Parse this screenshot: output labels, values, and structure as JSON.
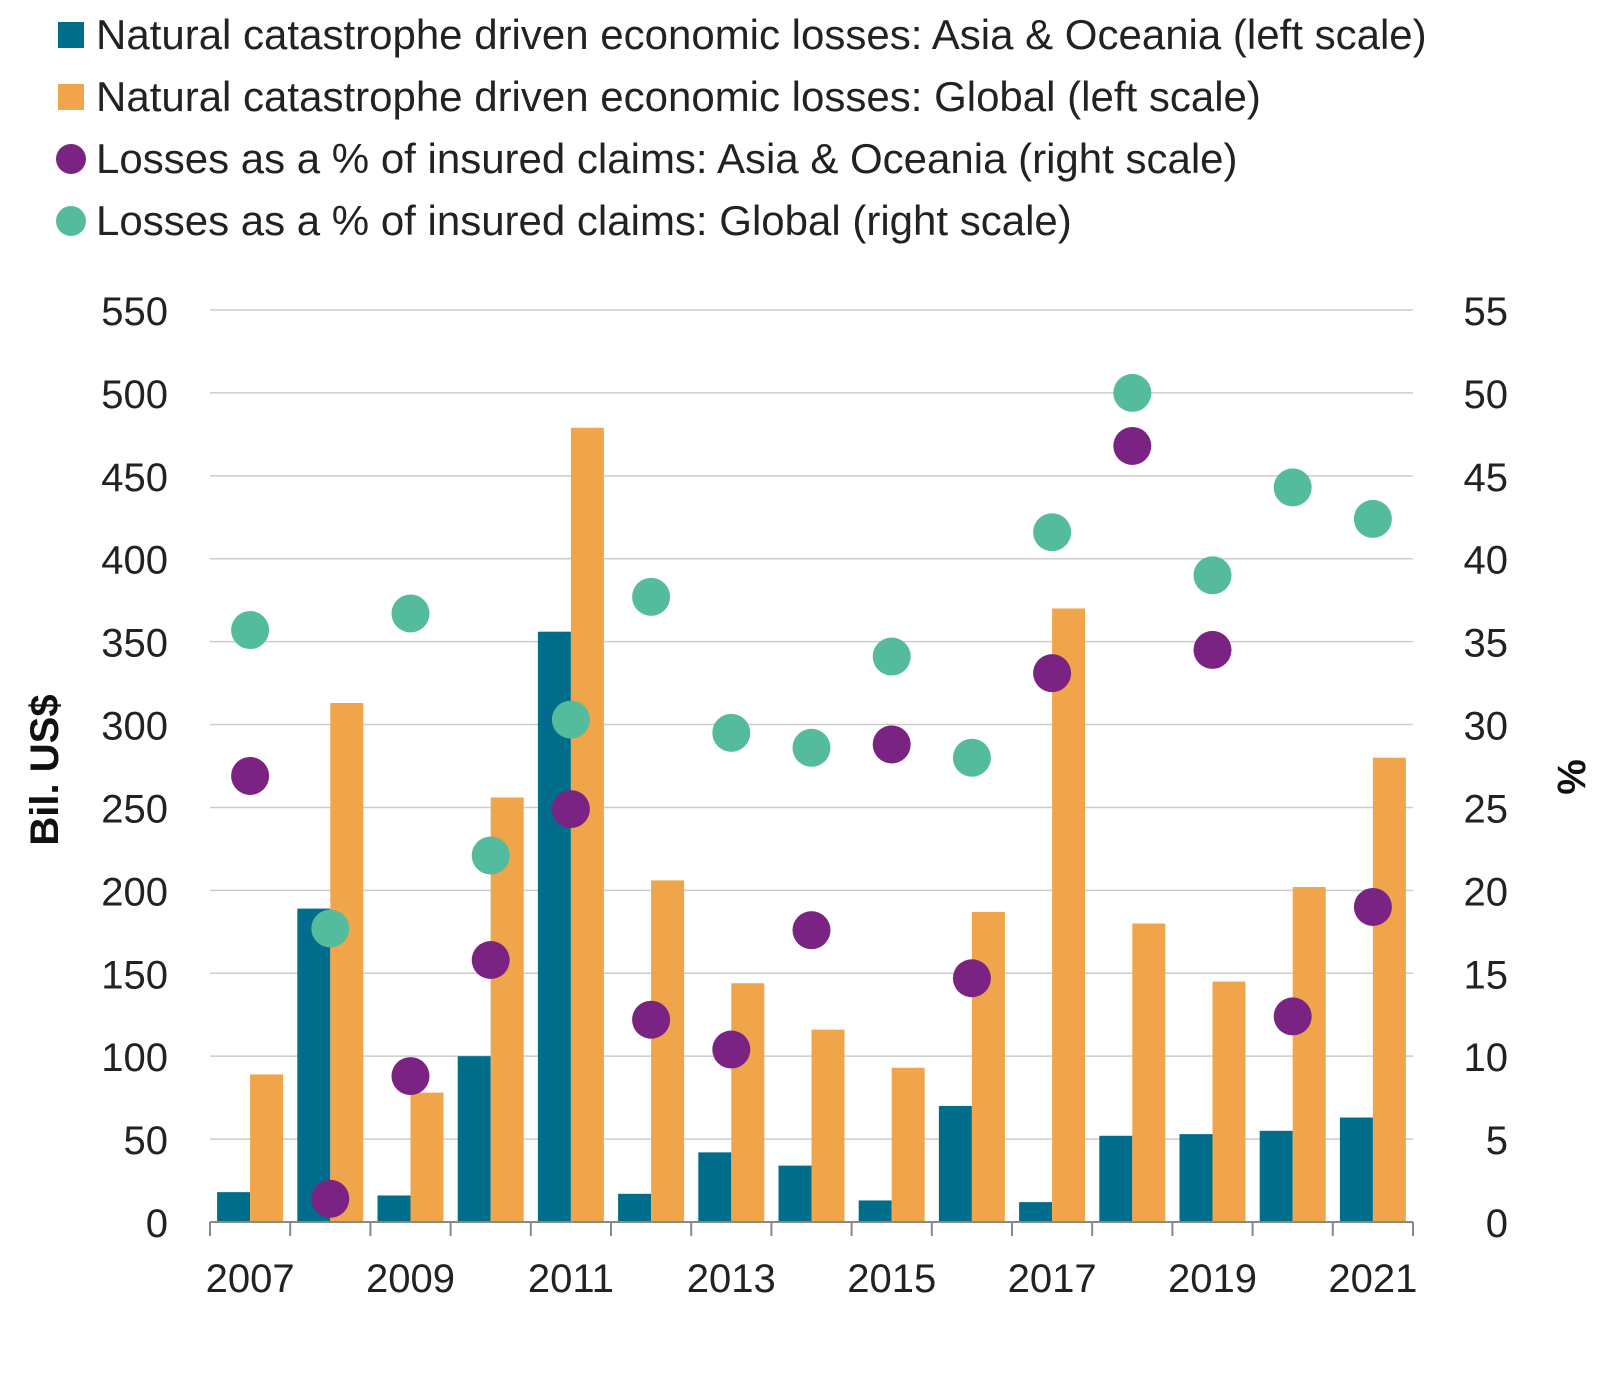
{
  "chart_data": {
    "type": "bar",
    "categories": [
      "2007",
      "2008",
      "2009",
      "2010",
      "2011",
      "2012",
      "2013",
      "2014",
      "2015",
      "2016",
      "2017",
      "2018",
      "2019",
      "2020",
      "2021"
    ],
    "x_tick_labels": [
      "2007",
      "",
      "2009",
      "",
      "2011",
      "",
      "2013",
      "",
      "2015",
      "",
      "2017",
      "",
      "2019",
      "",
      "2021"
    ],
    "series": [
      {
        "name": "Natural catastrophe driven economic losses: Asia & Oceania (left scale)",
        "kind": "bar",
        "axis": "left",
        "color": "#006e8a",
        "values": [
          18,
          189,
          16,
          100,
          356,
          17,
          42,
          34,
          13,
          70,
          12,
          52,
          53,
          55,
          63
        ]
      },
      {
        "name": "Natural catastrophe driven economic losses: Global (left scale)",
        "kind": "bar",
        "axis": "left",
        "color": "#f0a54a",
        "values": [
          89,
          313,
          78,
          256,
          479,
          206,
          144,
          116,
          93,
          187,
          370,
          180,
          145,
          202,
          280
        ]
      },
      {
        "name": "Losses as a % of insured claims: Asia & Oceania (right scale)",
        "kind": "scatter",
        "axis": "right",
        "color": "#7b2383",
        "values": [
          26.9,
          1.4,
          8.8,
          15.8,
          24.9,
          12.2,
          10.4,
          17.6,
          28.8,
          14.7,
          33.1,
          46.8,
          34.5,
          12.4,
          19.0
        ]
      },
      {
        "name": "Losses as a % of insured claims: Global (right scale)",
        "kind": "scatter",
        "axis": "right",
        "color": "#55bb9d",
        "values": [
          35.7,
          17.7,
          36.7,
          22.1,
          30.3,
          37.7,
          29.5,
          28.6,
          34.1,
          28.0,
          41.6,
          50.0,
          39.0,
          44.3,
          42.4
        ]
      }
    ],
    "y_left": {
      "label": "Bil. US$",
      "min": 0,
      "max": 550,
      "ticks": [
        0,
        50,
        100,
        150,
        200,
        250,
        300,
        350,
        400,
        450,
        500,
        550
      ]
    },
    "y_right": {
      "label": "%",
      "min": 0,
      "max": 55,
      "ticks": [
        0,
        5,
        10,
        15,
        20,
        25,
        30,
        35,
        40,
        45,
        50,
        55
      ]
    },
    "grid": true,
    "legend_position": "top"
  }
}
